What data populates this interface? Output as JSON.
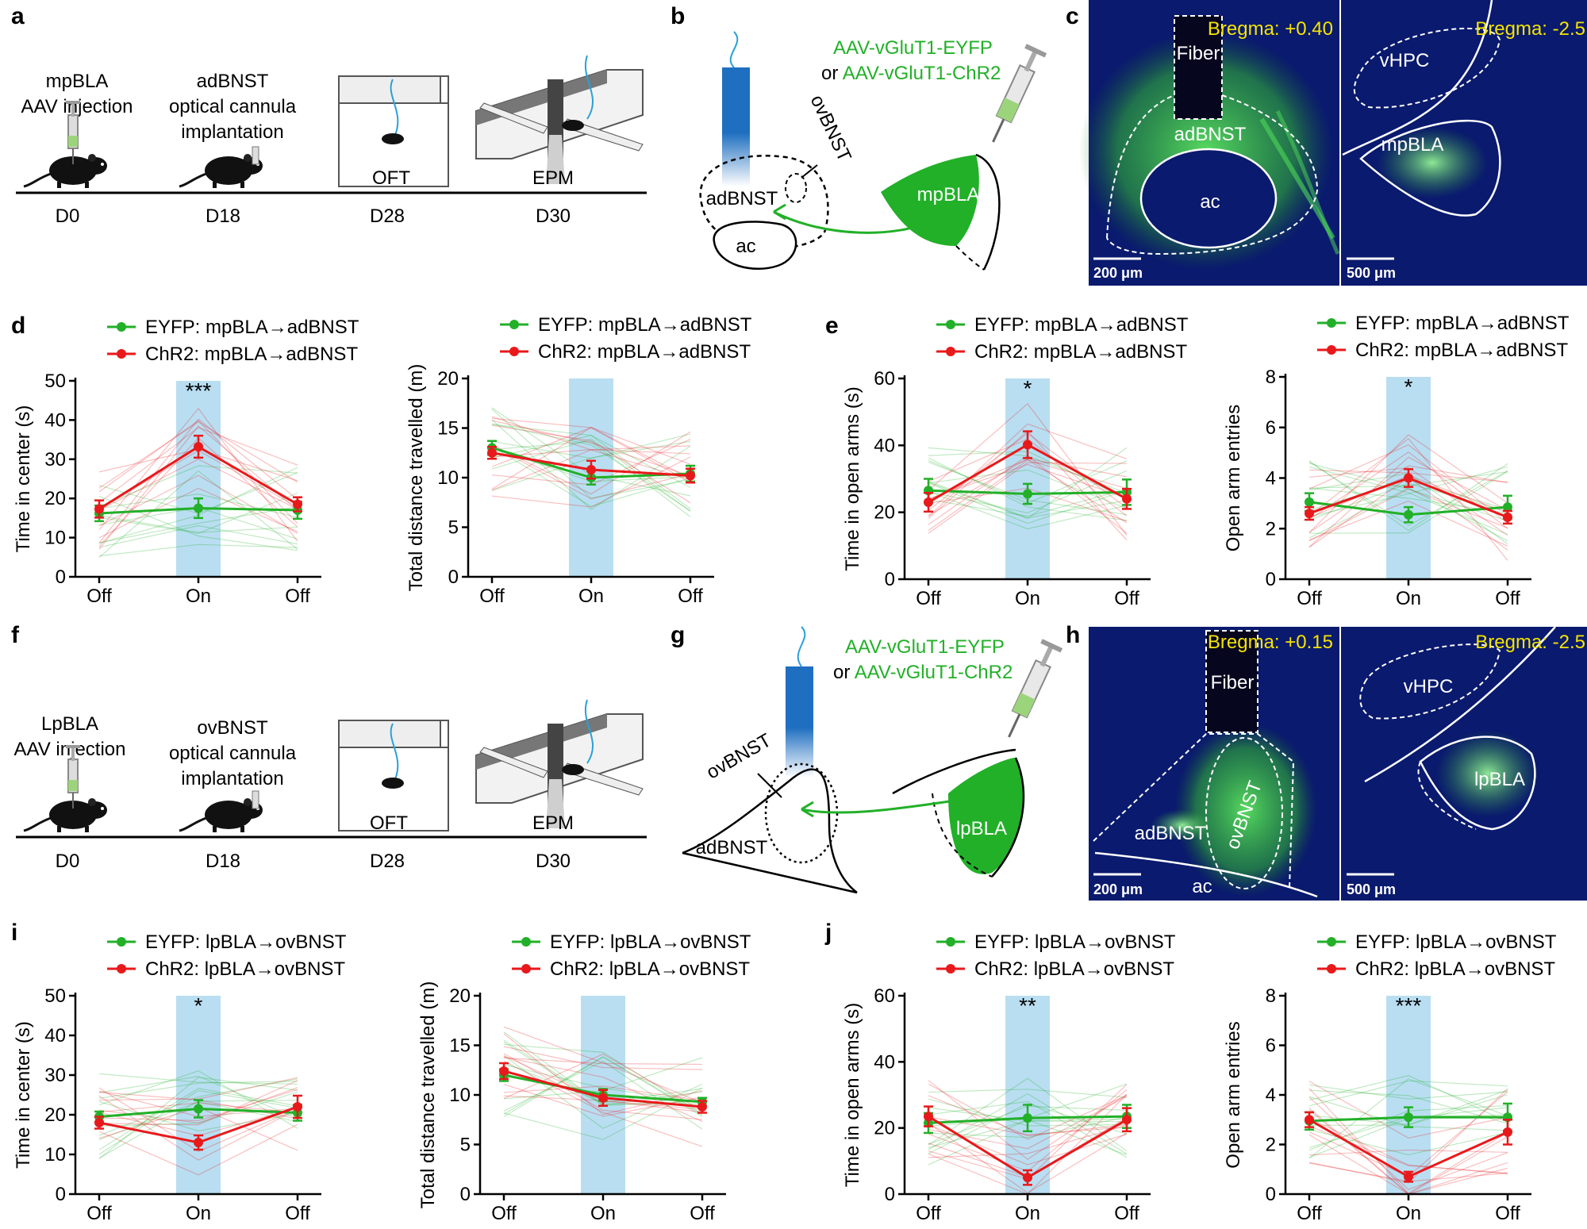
{
  "colors": {
    "eyfp": "#22b028",
    "chr2": "#e8191b",
    "on_band": "#b9def1",
    "fiber_blue": "#1f6fc0",
    "brain_bg": "#0a1a6e",
    "green_signal": "#39c43f",
    "bregma_text": "#f5e400"
  },
  "panels": {
    "a": {
      "letter": "a",
      "steps": [
        {
          "text1": "mpBLA",
          "text2": "AAV injection",
          "day": "D0"
        },
        {
          "text1": "adBNST",
          "text2": "optical cannula",
          "text3": "implantation",
          "day": "D18"
        },
        {
          "text1": "OFT",
          "day": "D28"
        },
        {
          "text1": "EPM",
          "day": "D30"
        }
      ]
    },
    "b": {
      "letter": "b",
      "virus_line1": "AAV-vGluT1-EYFP",
      "virus_line2_prefix": "or ",
      "virus_line2": "AAV-vGluT1-ChR2",
      "labels": {
        "ovbnst": "ovBNST",
        "adbnst": "adBNST",
        "ac": "ac",
        "mpbla": "mpBLA"
      }
    },
    "c": {
      "letter": "c",
      "left": {
        "bregma": "Bregma: +0.40",
        "fiber": "Fiber",
        "adbnst": "adBNST",
        "ac": "ac",
        "scale": "200 μm"
      },
      "right": {
        "bregma": "Bregma: -2.5",
        "vhpc": "vHPC",
        "region": "mpBLA",
        "scale": "500 μm"
      }
    },
    "d": {
      "letter": "d"
    },
    "e": {
      "letter": "e"
    },
    "f": {
      "letter": "f",
      "steps": [
        {
          "text1": "LpBLA",
          "text2": "AAV injection",
          "day": "D0"
        },
        {
          "text1": "ovBNST",
          "text2": "optical cannula",
          "text3": "implantation",
          "day": "D18"
        },
        {
          "text1": "OFT",
          "day": "D28"
        },
        {
          "text1": "EPM",
          "day": "D30"
        }
      ]
    },
    "g": {
      "letter": "g",
      "virus_line1": "AAV-vGluT1-EYFP",
      "virus_line2_prefix": "or ",
      "virus_line2": "AAV-vGluT1-ChR2",
      "labels": {
        "ovbnst": "ovBNST",
        "adbnst": "adBNST",
        "lpbla": "lpBLA"
      }
    },
    "h": {
      "letter": "h",
      "left": {
        "bregma": "Bregma: +0.15",
        "fiber": "Fiber",
        "adbnst": "adBNST",
        "ovbnst": "ovBNST",
        "ac": "ac",
        "scale": "200 μm"
      },
      "right": {
        "bregma": "Bregma: -2.5",
        "vhpc": "vHPC",
        "region": "lpBLA",
        "scale": "500 μm"
      }
    },
    "i": {
      "letter": "i"
    },
    "j": {
      "letter": "j"
    }
  },
  "chart_data": [
    {
      "id": "d1",
      "type": "line",
      "categories": [
        "Off",
        "On",
        "Off"
      ],
      "ylabel": "Time in center (s)",
      "ylim": [
        0,
        50
      ],
      "yticks": [
        0,
        10,
        20,
        30,
        40,
        50
      ],
      "significance": "***",
      "series": [
        {
          "name": "EYFP: mpBLA→adBNST",
          "values": [
            16.2,
            17.5,
            17.0
          ],
          "err": [
            2.0,
            2.5,
            2.2
          ]
        },
        {
          "name": "ChR2: mpBLA→adBNST",
          "values": [
            17.3,
            33.2,
            18.5
          ],
          "err": [
            2.2,
            2.8,
            1.8
          ]
        }
      ]
    },
    {
      "id": "d2",
      "type": "line",
      "categories": [
        "Off",
        "On",
        "Off"
      ],
      "ylabel": "Total distance travelled (m)",
      "ylim": [
        0,
        20
      ],
      "yticks": [
        0,
        5,
        10,
        15,
        20
      ],
      "significance": "",
      "series": [
        {
          "name": "EYFP: mpBLA→adBNST",
          "values": [
            13.0,
            10.0,
            10.4
          ],
          "err": [
            0.7,
            0.7,
            0.8
          ]
        },
        {
          "name": "ChR2: mpBLA→adBNST",
          "values": [
            12.5,
            10.8,
            10.2
          ],
          "err": [
            0.6,
            0.9,
            0.7
          ]
        }
      ]
    },
    {
      "id": "e1",
      "type": "line",
      "categories": [
        "Off",
        "On",
        "Off"
      ],
      "ylabel": "Time in open arms (s)",
      "ylim": [
        0,
        60
      ],
      "yticks": [
        0,
        20,
        40,
        60
      ],
      "significance": "*",
      "series": [
        {
          "name": "EYFP: mpBLA→adBNST",
          "values": [
            26.5,
            25.5,
            26.0
          ],
          "err": [
            3.5,
            3.0,
            3.8
          ]
        },
        {
          "name": "ChR2: mpBLA→adBNST",
          "values": [
            23.0,
            40.2,
            24.0
          ],
          "err": [
            2.8,
            4.0,
            3.0
          ]
        }
      ]
    },
    {
      "id": "e2",
      "type": "line",
      "categories": [
        "Off",
        "On",
        "Off"
      ],
      "ylabel": "Open arm entries",
      "ylim": [
        0,
        8
      ],
      "yticks": [
        0,
        2,
        4,
        6,
        8
      ],
      "significance": "*",
      "series": [
        {
          "name": "EYFP: mpBLA→adBNST",
          "values": [
            3.05,
            2.55,
            2.85
          ],
          "err": [
            0.35,
            0.3,
            0.45
          ]
        },
        {
          "name": "ChR2: mpBLA→adBNST",
          "values": [
            2.6,
            4.0,
            2.45
          ],
          "err": [
            0.25,
            0.35,
            0.25
          ]
        }
      ]
    },
    {
      "id": "i1",
      "type": "line",
      "categories": [
        "Off",
        "On",
        "Off"
      ],
      "ylabel": "Time in center (s)",
      "ylim": [
        0,
        50
      ],
      "yticks": [
        0,
        10,
        20,
        30,
        40,
        50
      ],
      "significance": "*",
      "series": [
        {
          "name": "EYFP: lpBLA→ovBNST",
          "values": [
            19.5,
            21.5,
            20.5
          ],
          "err": [
            1.3,
            2.2,
            2.0
          ]
        },
        {
          "name": "ChR2: lpBLA→ovBNST",
          "values": [
            18.0,
            13.0,
            22.0
          ],
          "err": [
            1.5,
            1.8,
            2.8
          ]
        }
      ]
    },
    {
      "id": "i2",
      "type": "line",
      "categories": [
        "Off",
        "On",
        "Off"
      ],
      "ylabel": "Total distance travelled (m)",
      "ylim": [
        0,
        20
      ],
      "yticks": [
        0,
        5,
        10,
        15,
        20
      ],
      "significance": "",
      "series": [
        {
          "name": "EYFP: lpBLA→ovBNST",
          "values": [
            12.0,
            10.0,
            9.3
          ],
          "err": [
            0.6,
            0.6,
            0.4
          ]
        },
        {
          "name": "ChR2: lpBLA→ovBNST",
          "values": [
            12.4,
            9.7,
            8.8
          ],
          "err": [
            0.8,
            0.8,
            0.6
          ]
        }
      ]
    },
    {
      "id": "j1",
      "type": "line",
      "categories": [
        "Off",
        "On",
        "Off"
      ],
      "ylabel": "Time in open arms (s)",
      "ylim": [
        0,
        60
      ],
      "yticks": [
        0,
        20,
        40,
        60
      ],
      "significance": "**",
      "series": [
        {
          "name": "EYFP: lpBLA→ovBNST",
          "values": [
            21.5,
            23.0,
            23.5
          ],
          "err": [
            3.0,
            4.0,
            3.5
          ]
        },
        {
          "name": "ChR2: lpBLA→ovBNST",
          "values": [
            23.5,
            5.0,
            22.5
          ],
          "err": [
            3.0,
            2.2,
            3.5
          ]
        }
      ]
    },
    {
      "id": "j2",
      "type": "line",
      "categories": [
        "Off",
        "On",
        "Off"
      ],
      "ylabel": "Open arm entries",
      "ylim": [
        0,
        8
      ],
      "yticks": [
        0,
        2,
        4,
        6,
        8
      ],
      "significance": "***",
      "series": [
        {
          "name": "EYFP: lpBLA→ovBNST",
          "values": [
            2.95,
            3.1,
            3.1
          ],
          "err": [
            0.35,
            0.4,
            0.55
          ]
        },
        {
          "name": "ChR2: lpBLA→ovBNST",
          "values": [
            3.0,
            0.7,
            2.5
          ],
          "err": [
            0.3,
            0.2,
            0.5
          ]
        }
      ]
    }
  ]
}
